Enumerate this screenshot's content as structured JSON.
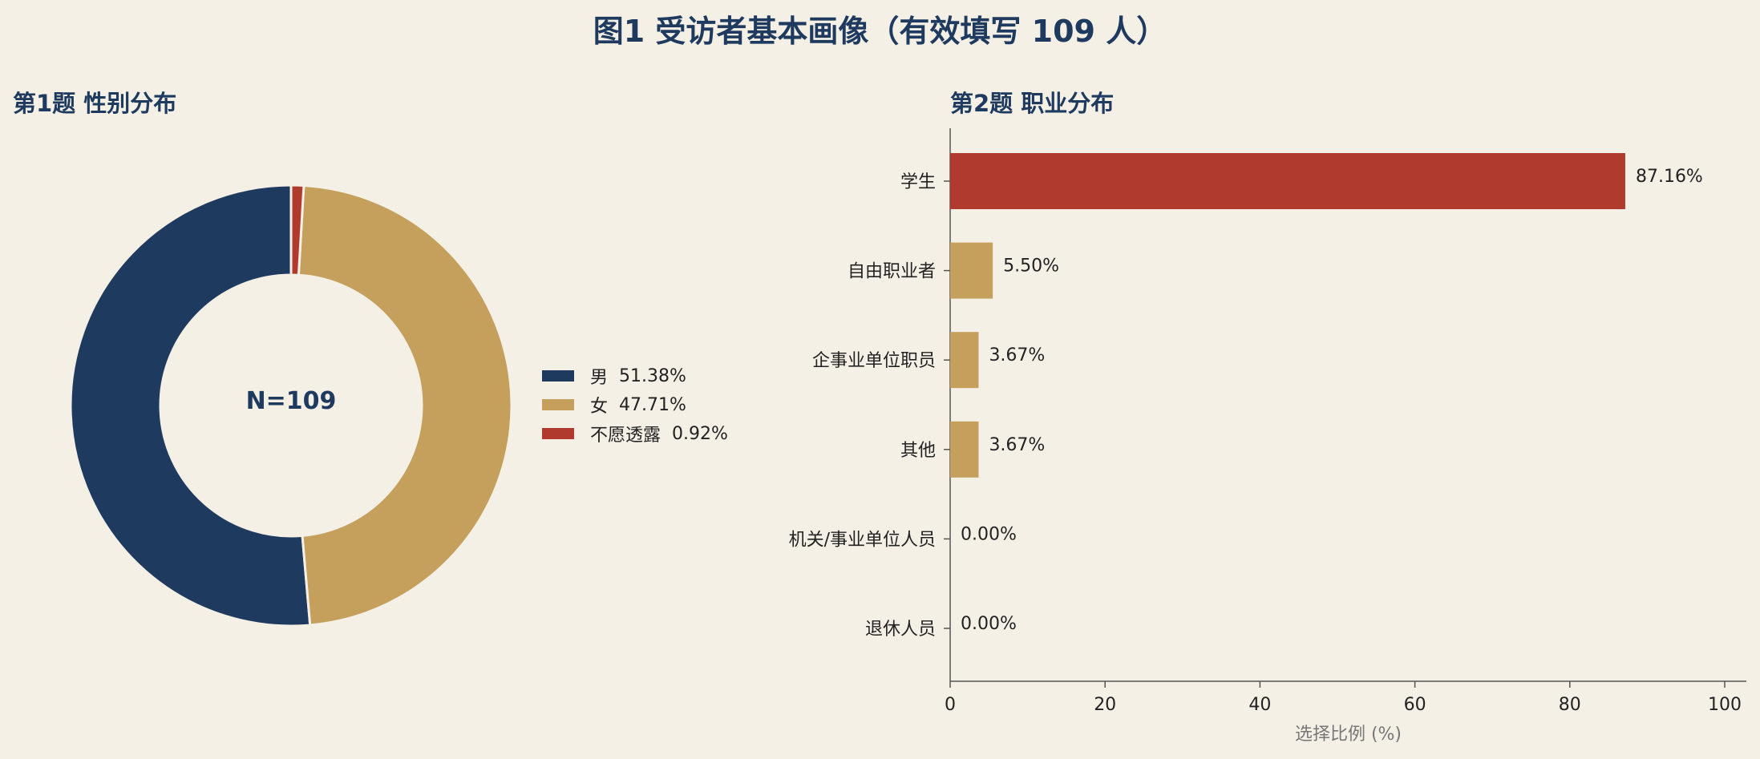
{
  "title": "图1 受访者基本画像（有效填写 109 人）",
  "colors": {
    "navy": "#1f3a5f",
    "gold": "#c5a05c",
    "red": "#b03a2e",
    "background": "#f5f0e6"
  },
  "chart_data": [
    {
      "type": "pie",
      "subtype": "donut",
      "title": "第1题 性别分布",
      "center_label": "N=109",
      "legend_position": "right",
      "slices": [
        {
          "label": "男",
          "value": 51.38,
          "value_label": "51.38%",
          "color": "#1f3a5f"
        },
        {
          "label": "女",
          "value": 47.71,
          "value_label": "47.71%",
          "color": "#c5a05c"
        },
        {
          "label": "不愿透露",
          "value": 0.92,
          "value_label": "0.92%",
          "color": "#b03a2e"
        }
      ]
    },
    {
      "type": "bar",
      "orientation": "horizontal",
      "title": "第2题 职业分布",
      "xlabel": "选择比例 (%)",
      "ylabel": "",
      "xlim": [
        0,
        100
      ],
      "xticks": [
        0,
        20,
        40,
        60,
        80,
        100
      ],
      "grid": false,
      "categories": [
        "学生",
        "自由职业者",
        "企事业单位职员",
        "其他",
        "机关/事业单位人员",
        "退休人员"
      ],
      "values": [
        87.16,
        5.5,
        3.67,
        3.67,
        0.0,
        0.0
      ],
      "value_labels": [
        "87.16%",
        "5.50%",
        "3.67%",
        "3.67%",
        "0.00%",
        "0.00%"
      ],
      "colors": [
        "#b03a2e",
        "#c5a05c",
        "#c5a05c",
        "#c5a05c",
        "#c5a05c",
        "#c5a05c"
      ]
    }
  ]
}
